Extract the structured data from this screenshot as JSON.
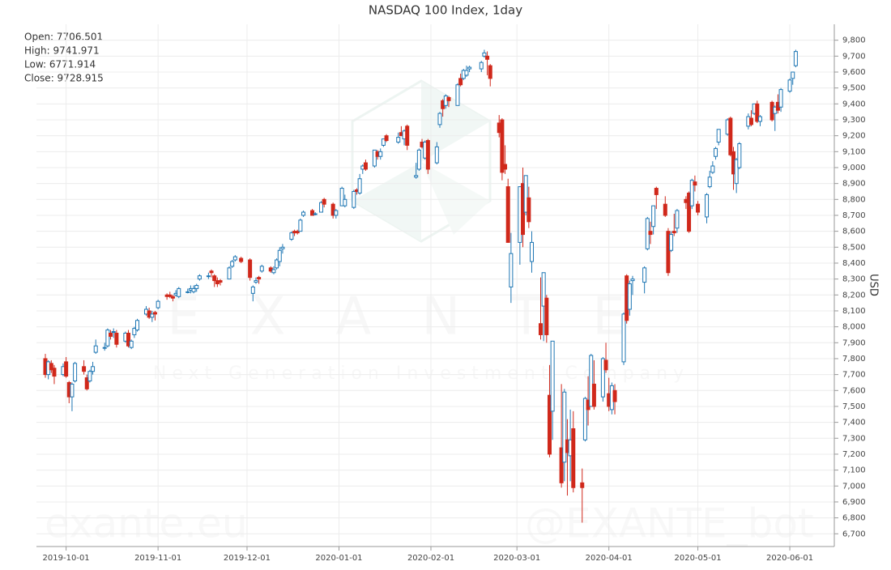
{
  "chart_data": {
    "type": "candlestick",
    "title": "NASDAQ 100 Index, 1day",
    "y_label": "USD",
    "summary": [
      "Open: 7706.501",
      "High: 9741.971",
      "Low: 6771.914",
      "Close: 9728.915"
    ],
    "watermarks": [
      "EXANTE",
      "Next Generation Investment Company",
      "exante.eu",
      "@EXANTE_bot"
    ],
    "increasing_color": "#1f77b4",
    "decreasing_color": "#d0281b",
    "grid": true,
    "xlim": [
      "2019-09-21",
      "2020-06-16"
    ],
    "xticks": [
      "2019-10-01",
      "2019-11-01",
      "2019-12-01",
      "2020-01-01",
      "2020-02-01",
      "2020-03-01",
      "2020-04-01",
      "2020-05-01",
      "2020-06-01"
    ],
    "ylim": [
      6620,
      9900
    ],
    "yticks": [
      {
        "value": 6700,
        "label": "6,700"
      },
      {
        "value": 6800,
        "label": "6,800"
      },
      {
        "value": 6900,
        "label": "6,900"
      },
      {
        "value": 7000,
        "label": "7,000"
      },
      {
        "value": 7100,
        "label": "7,100"
      },
      {
        "value": 7200,
        "label": "7,200"
      },
      {
        "value": 7300,
        "label": "7,300"
      },
      {
        "value": 7400,
        "label": "7,400"
      },
      {
        "value": 7500,
        "label": "7,500"
      },
      {
        "value": 7600,
        "label": "7,600"
      },
      {
        "value": 7700,
        "label": "7,700"
      },
      {
        "value": 7800,
        "label": "7,800"
      },
      {
        "value": 7900,
        "label": "7,900"
      },
      {
        "value": 8000,
        "label": "8,000"
      },
      {
        "value": 8100,
        "label": "8,100"
      },
      {
        "value": 8200,
        "label": "8,200"
      },
      {
        "value": 8300,
        "label": "8,300"
      },
      {
        "value": 8400,
        "label": "8,400"
      },
      {
        "value": 8500,
        "label": "8,500"
      },
      {
        "value": 8600,
        "label": "8,600"
      },
      {
        "value": 8700,
        "label": "8,700"
      },
      {
        "value": 8800,
        "label": "8,800"
      },
      {
        "value": 8900,
        "label": "8,900"
      },
      {
        "value": 9000,
        "label": "9,000"
      },
      {
        "value": 9100,
        "label": "9,100"
      },
      {
        "value": 9200,
        "label": "9,200"
      },
      {
        "value": 9300,
        "label": "9,300"
      },
      {
        "value": 9400,
        "label": "9,400"
      },
      {
        "value": 9500,
        "label": "9,500"
      },
      {
        "value": 9600,
        "label": "9,600"
      },
      {
        "value": 9700,
        "label": "9,700"
      },
      {
        "value": 9800,
        "label": "9,800"
      }
    ],
    "x": [
      "2019-09-24",
      "2019-09-25",
      "2019-09-26",
      "2019-09-27",
      "2019-09-30",
      "2019-10-01",
      "2019-10-02",
      "2019-10-03",
      "2019-10-04",
      "2019-10-07",
      "2019-10-08",
      "2019-10-09",
      "2019-10-10",
      "2019-10-11",
      "2019-10-14",
      "2019-10-15",
      "2019-10-16",
      "2019-10-17",
      "2019-10-18",
      "2019-10-21",
      "2019-10-22",
      "2019-10-23",
      "2019-10-24",
      "2019-10-25",
      "2019-10-28",
      "2019-10-29",
      "2019-10-30",
      "2019-10-31",
      "2019-11-01",
      "2019-11-04",
      "2019-11-05",
      "2019-11-06",
      "2019-11-07",
      "2019-11-08",
      "2019-11-11",
      "2019-11-12",
      "2019-11-13",
      "2019-11-14",
      "2019-11-15",
      "2019-11-18",
      "2019-11-19",
      "2019-11-20",
      "2019-11-21",
      "2019-11-22",
      "2019-11-25",
      "2019-11-26",
      "2019-11-27",
      "2019-11-29",
      "2019-12-02",
      "2019-12-03",
      "2019-12-04",
      "2019-12-05",
      "2019-12-06",
      "2019-12-09",
      "2019-12-10",
      "2019-12-11",
      "2019-12-12",
      "2019-12-13",
      "2019-12-16",
      "2019-12-17",
      "2019-12-18",
      "2019-12-19",
      "2019-12-20",
      "2019-12-23",
      "2019-12-24",
      "2019-12-26",
      "2019-12-27",
      "2019-12-30",
      "2019-12-31",
      "2020-01-02",
      "2020-01-03",
      "2020-01-06",
      "2020-01-07",
      "2020-01-08",
      "2020-01-09",
      "2020-01-10",
      "2020-01-13",
      "2020-01-14",
      "2020-01-15",
      "2020-01-16",
      "2020-01-17",
      "2020-01-21",
      "2020-01-22",
      "2020-01-23",
      "2020-01-24",
      "2020-01-27",
      "2020-01-28",
      "2020-01-29",
      "2020-01-30",
      "2020-01-31",
      "2020-02-03",
      "2020-02-04",
      "2020-02-05",
      "2020-02-06",
      "2020-02-07",
      "2020-02-10",
      "2020-02-11",
      "2020-02-12",
      "2020-02-13",
      "2020-02-14",
      "2020-02-18",
      "2020-02-19",
      "2020-02-20",
      "2020-02-21",
      "2020-02-24",
      "2020-02-25",
      "2020-02-26",
      "2020-02-27",
      "2020-02-28",
      "2020-03-02",
      "2020-03-03",
      "2020-03-04",
      "2020-03-05",
      "2020-03-06",
      "2020-03-09",
      "2020-03-10",
      "2020-03-11",
      "2020-03-12",
      "2020-03-13",
      "2020-03-16",
      "2020-03-17",
      "2020-03-18",
      "2020-03-19",
      "2020-03-20",
      "2020-03-23",
      "2020-03-24",
      "2020-03-25",
      "2020-03-26",
      "2020-03-27",
      "2020-03-30",
      "2020-03-31",
      "2020-04-01",
      "2020-04-02",
      "2020-04-03",
      "2020-04-06",
      "2020-04-07",
      "2020-04-08",
      "2020-04-09",
      "2020-04-13",
      "2020-04-14",
      "2020-04-15",
      "2020-04-16",
      "2020-04-17",
      "2020-04-20",
      "2020-04-21",
      "2020-04-22",
      "2020-04-23",
      "2020-04-24",
      "2020-04-27",
      "2020-04-28",
      "2020-04-29",
      "2020-04-30",
      "2020-05-01",
      "2020-05-04",
      "2020-05-05",
      "2020-05-06",
      "2020-05-07",
      "2020-05-08",
      "2020-05-11",
      "2020-05-12",
      "2020-05-13",
      "2020-05-14",
      "2020-05-15",
      "2020-05-18",
      "2020-05-19",
      "2020-05-20",
      "2020-05-21",
      "2020-05-22",
      "2020-05-26",
      "2020-05-27",
      "2020-05-28",
      "2020-05-29",
      "2020-06-01",
      "2020-06-02",
      "2020-06-03"
    ],
    "ohlc": [
      [
        7800,
        7830,
        7680,
        7700
      ],
      [
        7700,
        7790,
        7670,
        7780
      ],
      [
        7770,
        7790,
        7710,
        7730
      ],
      [
        7740,
        7760,
        7640,
        7690
      ],
      [
        7700,
        7770,
        7690,
        7750
      ],
      [
        7780,
        7810,
        7680,
        7690
      ],
      [
        7650,
        7660,
        7520,
        7560
      ],
      [
        7560,
        7650,
        7470,
        7640
      ],
      [
        7660,
        7780,
        7650,
        7770
      ],
      [
        7750,
        7790,
        7700,
        7720
      ],
      [
        7680,
        7700,
        7600,
        7610
      ],
      [
        7660,
        7730,
        7650,
        7720
      ],
      [
        7720,
        7780,
        7700,
        7750
      ],
      [
        7840,
        7920,
        7830,
        7880
      ],
      [
        7870,
        7900,
        7850,
        7870
      ],
      [
        7880,
        7990,
        7870,
        7980
      ],
      [
        7960,
        7980,
        7920,
        7940
      ],
      [
        7970,
        7990,
        7930,
        7970
      ],
      [
        7960,
        7980,
        7870,
        7890
      ],
      [
        7910,
        7970,
        7900,
        7960
      ],
      [
        7960,
        7980,
        7870,
        7880
      ],
      [
        7870,
        7920,
        7860,
        7910
      ],
      [
        7950,
        8000,
        7930,
        7990
      ],
      [
        7980,
        8050,
        7970,
        8040
      ],
      [
        8080,
        8130,
        8070,
        8110
      ],
      [
        8100,
        8120,
        8050,
        8060
      ],
      [
        8060,
        8100,
        8030,
        8080
      ],
      [
        8090,
        8100,
        8040,
        8080
      ],
      [
        8120,
        8170,
        8110,
        8160
      ],
      [
        8200,
        8210,
        8170,
        8190
      ],
      [
        8200,
        8220,
        8180,
        8190
      ],
      [
        8190,
        8200,
        8160,
        8180
      ],
      [
        8200,
        8230,
        8190,
        8210
      ],
      [
        8190,
        8250,
        8180,
        8240
      ],
      [
        8220,
        8240,
        8210,
        8220
      ],
      [
        8230,
        8260,
        8210,
        8240
      ],
      [
        8220,
        8260,
        8210,
        8240
      ],
      [
        8240,
        8270,
        8220,
        8260
      ],
      [
        8300,
        8330,
        8290,
        8320
      ],
      [
        8320,
        8340,
        8300,
        8320
      ],
      [
        8350,
        8360,
        8310,
        8340
      ],
      [
        8320,
        8330,
        8250,
        8290
      ],
      [
        8290,
        8310,
        8250,
        8270
      ],
      [
        8290,
        8300,
        8260,
        8280
      ],
      [
        8300,
        8380,
        8300,
        8370
      ],
      [
        8380,
        8420,
        8370,
        8410
      ],
      [
        8420,
        8450,
        8410,
        8440
      ],
      [
        8430,
        8440,
        8400,
        8410
      ],
      [
        8420,
        8430,
        8290,
        8310
      ],
      [
        8210,
        8260,
        8160,
        8250
      ],
      [
        8280,
        8310,
        8270,
        8290
      ],
      [
        8310,
        8320,
        8270,
        8300
      ],
      [
        8350,
        8390,
        8340,
        8380
      ],
      [
        8370,
        8380,
        8340,
        8350
      ],
      [
        8340,
        8380,
        8330,
        8360
      ],
      [
        8370,
        8430,
        8360,
        8420
      ],
      [
        8410,
        8500,
        8380,
        8480
      ],
      [
        8490,
        8520,
        8460,
        8500
      ],
      [
        8550,
        8600,
        8540,
        8590
      ],
      [
        8600,
        8610,
        8570,
        8590
      ],
      [
        8600,
        8610,
        8580,
        8590
      ],
      [
        8600,
        8680,
        8600,
        8670
      ],
      [
        8700,
        8730,
        8690,
        8720
      ],
      [
        8730,
        8740,
        8700,
        8700
      ],
      [
        8710,
        8720,
        8700,
        8710
      ],
      [
        8720,
        8790,
        8720,
        8780
      ],
      [
        8800,
        8810,
        8750,
        8770
      ],
      [
        8770,
        8780,
        8680,
        8700
      ],
      [
        8700,
        8740,
        8680,
        8730
      ],
      [
        8760,
        8880,
        8760,
        8870
      ],
      [
        8760,
        8830,
        8750,
        8800
      ],
      [
        8750,
        8860,
        8740,
        8850
      ],
      [
        8860,
        8870,
        8830,
        8850
      ],
      [
        8840,
        8960,
        8830,
        8930
      ],
      [
        8990,
        9020,
        8960,
        9010
      ],
      [
        9030,
        9050,
        8980,
        8990
      ],
      [
        9010,
        9110,
        9000,
        9110
      ],
      [
        9100,
        9110,
        9050,
        9070
      ],
      [
        9070,
        9120,
        9050,
        9100
      ],
      [
        9140,
        9180,
        9130,
        9180
      ],
      [
        9200,
        9210,
        9160,
        9170
      ],
      [
        9160,
        9220,
        9150,
        9190
      ],
      [
        9220,
        9260,
        9200,
        9200
      ],
      [
        9180,
        9240,
        9140,
        9230
      ],
      [
        9260,
        9270,
        9110,
        9140
      ],
      [
        8940,
        9030,
        8930,
        8950
      ],
      [
        8990,
        9120,
        8980,
        9110
      ],
      [
        9160,
        9180,
        9120,
        9130
      ],
      [
        9060,
        9170,
        9050,
        9160
      ],
      [
        9170,
        9180,
        8960,
        8990
      ],
      [
        9030,
        9160,
        9020,
        9130
      ],
      [
        9270,
        9350,
        9250,
        9340
      ],
      [
        9420,
        9430,
        9320,
        9370
      ],
      [
        9390,
        9460,
        9370,
        9450
      ],
      [
        9440,
        9450,
        9380,
        9420
      ],
      [
        9390,
        9530,
        9390,
        9520
      ],
      [
        9560,
        9590,
        9510,
        9520
      ],
      [
        9560,
        9620,
        9550,
        9610
      ],
      [
        9580,
        9640,
        9570,
        9610
      ],
      [
        9620,
        9640,
        9600,
        9630
      ],
      [
        9620,
        9670,
        9600,
        9660
      ],
      [
        9700,
        9740,
        9690,
        9720
      ],
      [
        9700,
        9730,
        9580,
        9680
      ],
      [
        9640,
        9650,
        9510,
        9560
      ],
      [
        9280,
        9330,
        9190,
        9220
      ],
      [
        9300,
        9310,
        8920,
        8970
      ],
      [
        9020,
        9140,
        8960,
        8990
      ],
      [
        8880,
        8930,
        8530,
        8530
      ],
      [
        8250,
        8590,
        8150,
        8460
      ],
      [
        8530,
        8880,
        8390,
        8880
      ],
      [
        8900,
        9000,
        8500,
        8580
      ],
      [
        8720,
        8950,
        8700,
        8950
      ],
      [
        8810,
        8880,
        8620,
        8660
      ],
      [
        8410,
        8600,
        8340,
        8530
      ],
      [
        8020,
        8310,
        7920,
        7950
      ],
      [
        8130,
        8340,
        7910,
        8340
      ],
      [
        8180,
        8200,
        7900,
        7950
      ],
      [
        7570,
        7760,
        7180,
        7200
      ],
      [
        7470,
        7910,
        7290,
        7910
      ],
      [
        7240,
        7640,
        6990,
        7020
      ],
      [
        7150,
        7610,
        7030,
        7590
      ],
      [
        7290,
        7420,
        6940,
        7210
      ],
      [
        7190,
        7480,
        7030,
        7290
      ],
      [
        7360,
        7470,
        6960,
        6990
      ],
      [
        7020,
        7110,
        6770,
        6990
      ],
      [
        7290,
        7560,
        7280,
        7550
      ],
      [
        7540,
        7690,
        7380,
        7480
      ],
      [
        7500,
        7830,
        7500,
        7820
      ],
      [
        7640,
        7790,
        7480,
        7500
      ],
      [
        7560,
        7810,
        7530,
        7800
      ],
      [
        7790,
        7900,
        7710,
        7730
      ],
      [
        7580,
        7680,
        7470,
        7500
      ],
      [
        7480,
        7650,
        7450,
        7630
      ],
      [
        7600,
        7640,
        7450,
        7530
      ],
      [
        7780,
        8090,
        7760,
        8080
      ],
      [
        8320,
        8330,
        8020,
        8040
      ],
      [
        8110,
        8290,
        8070,
        8270
      ],
      [
        8290,
        8320,
        8200,
        8300
      ],
      [
        8280,
        8380,
        8210,
        8370
      ],
      [
        8490,
        8690,
        8480,
        8680
      ],
      [
        8600,
        8660,
        8520,
        8580
      ],
      [
        8630,
        8760,
        8580,
        8760
      ],
      [
        8870,
        8880,
        8740,
        8830
      ],
      [
        8770,
        8820,
        8690,
        8700
      ],
      [
        8600,
        8620,
        8320,
        8340
      ],
      [
        8480,
        8600,
        8470,
        8580
      ],
      [
        8600,
        8710,
        8570,
        8590
      ],
      [
        8620,
        8740,
        8590,
        8730
      ],
      [
        8800,
        8820,
        8740,
        8780
      ],
      [
        8840,
        8850,
        8590,
        8600
      ],
      [
        8760,
        8930,
        8740,
        8920
      ],
      [
        8910,
        8950,
        8850,
        8890
      ],
      [
        8770,
        8790,
        8700,
        8720
      ],
      [
        8690,
        8840,
        8650,
        8830
      ],
      [
        8880,
        8980,
        8870,
        8940
      ],
      [
        8970,
        9040,
        8960,
        9010
      ],
      [
        9070,
        9130,
        9050,
        9120
      ],
      [
        9160,
        9240,
        9140,
        9240
      ],
      [
        9210,
        9310,
        9200,
        9300
      ],
      [
        9310,
        9320,
        9070,
        9080
      ],
      [
        9100,
        9130,
        8860,
        8960
      ],
      [
        8900,
        9060,
        8840,
        9050
      ],
      [
        9000,
        9160,
        8990,
        9150
      ],
      [
        9260,
        9340,
        9240,
        9320
      ],
      [
        9310,
        9360,
        9260,
        9270
      ],
      [
        9340,
        9400,
        9330,
        9400
      ],
      [
        9400,
        9420,
        9280,
        9290
      ],
      [
        9290,
        9330,
        9260,
        9320
      ],
      [
        9410,
        9420,
        9290,
        9300
      ],
      [
        9340,
        9390,
        9230,
        9380
      ],
      [
        9410,
        9460,
        9340,
        9360
      ],
      [
        9380,
        9500,
        9350,
        9490
      ],
      [
        9480,
        9560,
        9470,
        9550
      ],
      [
        9560,
        9600,
        9520,
        9600
      ],
      [
        9640,
        9740,
        9630,
        9729
      ]
    ]
  }
}
